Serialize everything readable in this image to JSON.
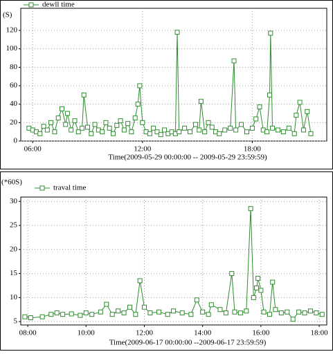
{
  "chart_data": [
    {
      "type": "line",
      "y_label": "(S)",
      "x_label": "Time(2009-05-29 00:00:00 -- 2009-05-29 23:59:59)",
      "grid": true,
      "xlim": [
        5.35,
        22.07
      ],
      "ylim": [
        0,
        144
      ],
      "xticks": [
        {
          "value": 6,
          "label": "06:00"
        },
        {
          "value": 12,
          "label": "12:00"
        },
        {
          "value": 18,
          "label": "18:00"
        }
      ],
      "yticks": [
        0,
        20,
        40,
        60,
        80,
        100,
        120
      ],
      "x": [
        5.8,
        6.0,
        6.2,
        6.4,
        6.6,
        6.8,
        7.0,
        7.2,
        7.4,
        7.6,
        7.8,
        7.9,
        8.1,
        8.3,
        8.5,
        8.7,
        8.8,
        9.0,
        9.2,
        9.4,
        9.6,
        9.8,
        10.0,
        10.2,
        10.4,
        10.6,
        10.8,
        11.0,
        11.2,
        11.4,
        11.6,
        11.75,
        11.85,
        12.0,
        12.2,
        12.4,
        12.6,
        12.8,
        13.0,
        13.2,
        13.4,
        13.6,
        13.8,
        13.9,
        14.0,
        14.3,
        14.6,
        14.9,
        15.1,
        15.2,
        15.4,
        15.6,
        15.8,
        16.0,
        16.2,
        16.5,
        16.8,
        17.0,
        17.1,
        17.4,
        17.7,
        18.0,
        18.2,
        18.4,
        18.6,
        18.8,
        18.95,
        19.0,
        19.1,
        19.4,
        19.7,
        20.0,
        20.3,
        20.4,
        20.6,
        20.8,
        21.0,
        21.2
      ],
      "series": [
        {
          "name": "dewll time",
          "color": "#2e8b2e",
          "values": [
            14,
            12,
            10,
            8,
            16,
            12,
            20,
            10,
            25,
            35,
            18,
            30,
            12,
            22,
            10,
            14,
            50,
            15,
            8,
            18,
            12,
            10,
            20,
            14,
            8,
            17,
            22,
            12,
            19,
            10,
            25,
            40,
            60,
            20,
            10,
            8,
            14,
            10,
            7,
            12,
            8,
            10,
            8,
            118,
            10,
            14,
            10,
            18,
            12,
            43,
            10,
            20,
            15,
            10,
            8,
            12,
            14,
            87,
            12,
            18,
            10,
            14,
            24,
            37,
            12,
            10,
            50,
            117,
            14,
            12,
            10,
            14,
            8,
            28,
            42,
            12,
            32,
            8
          ]
        }
      ]
    },
    {
      "type": "line",
      "y_label": "(*60S)",
      "x_label": "Time(2009-06-17 00:00:00 --2009-06-17 23:59:59)",
      "grid": true,
      "xlim": [
        7.76,
        18.26
      ],
      "ylim": [
        4.3,
        30.9
      ],
      "xticks": [
        {
          "value": 8,
          "label": "08:00"
        },
        {
          "value": 10,
          "label": "10:00"
        },
        {
          "value": 12,
          "label": "12:00"
        },
        {
          "value": 14,
          "label": "14:00"
        },
        {
          "value": 16,
          "label": "16:00"
        },
        {
          "value": 18,
          "label": "18:00"
        }
      ],
      "yticks": [
        5,
        10,
        15,
        20,
        25,
        30
      ],
      "x": [
        7.9,
        8.1,
        8.5,
        8.8,
        9.0,
        9.2,
        9.5,
        9.8,
        10.0,
        10.2,
        10.5,
        10.7,
        10.9,
        11.1,
        11.3,
        11.5,
        11.7,
        11.85,
        12.0,
        12.2,
        12.5,
        12.8,
        13.0,
        13.3,
        13.6,
        13.8,
        14.0,
        14.2,
        14.3,
        14.6,
        14.8,
        15.0,
        15.1,
        15.3,
        15.5,
        15.65,
        15.75,
        15.85,
        15.9,
        16.0,
        16.1,
        16.3,
        16.4,
        16.5,
        16.7,
        16.9,
        17.1,
        17.3,
        17.5,
        17.7,
        17.9,
        18.1
      ],
      "series": [
        {
          "name": "traval time",
          "color": "#2e8b2e",
          "values": [
            6,
            5.8,
            6,
            6.5,
            6.8,
            6.5,
            6.6,
            6.3,
            6.8,
            6.5,
            7.0,
            8.6,
            6.5,
            7.2,
            6.8,
            8.0,
            6.5,
            13.5,
            8.0,
            6.8,
            7.0,
            6.5,
            7.2,
            6.8,
            6.5,
            9.5,
            7.0,
            6.5,
            8.5,
            7.5,
            6.8,
            15.0,
            7.0,
            6.8,
            7.2,
            28.5,
            10.0,
            12.0,
            14.0,
            11.5,
            7.0,
            6.5,
            13.2,
            7.5,
            6.8,
            7.0,
            5.5,
            7.0,
            6.8,
            7.2,
            6.8,
            6.5
          ]
        }
      ]
    }
  ]
}
